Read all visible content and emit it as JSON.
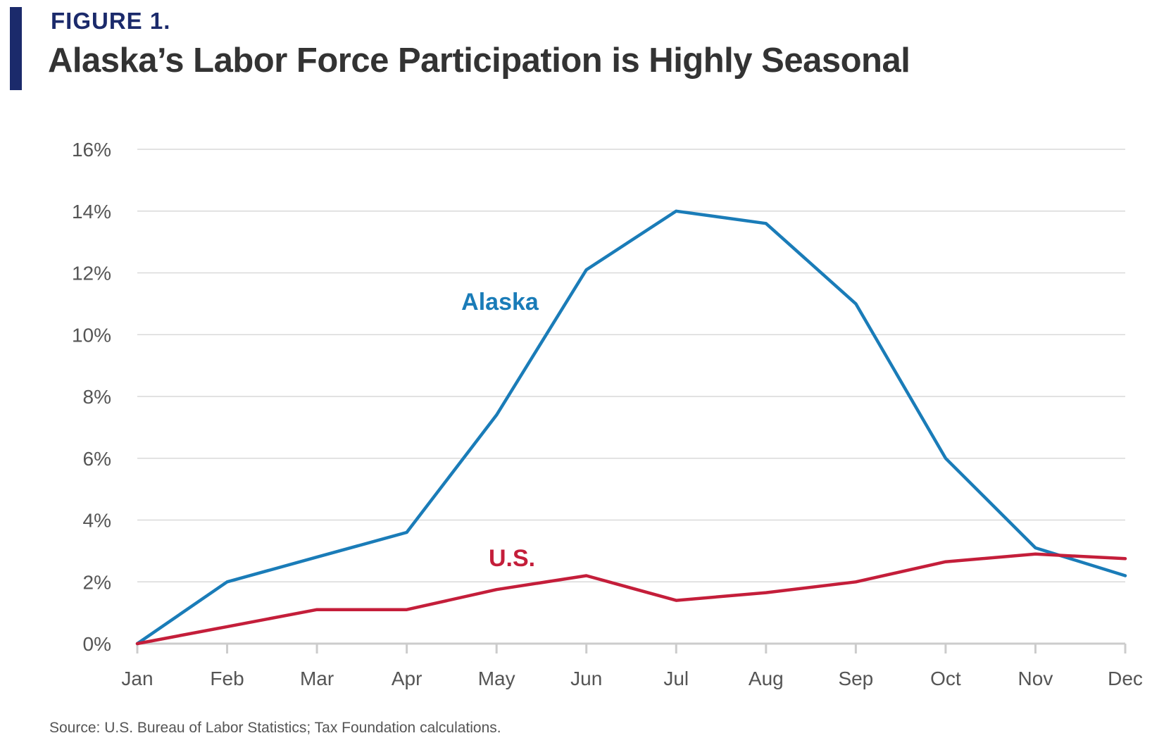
{
  "header": {
    "figure_label": "FIGURE 1.",
    "title": "Alaska’s Labor Force Participation is Highly Seasonal"
  },
  "footer": {
    "source": "Source: U.S. Bureau of Labor Statistics; Tax Foundation calculations."
  },
  "colors": {
    "accent": "#1b2a6b",
    "alaska": "#1a7cb8",
    "us": "#c41e3a",
    "grid": "#d9d9d9",
    "axis": "#cccccc"
  },
  "chart_data": {
    "type": "line",
    "title": "Alaska’s Labor Force Participation is Highly Seasonal",
    "xlabel": "",
    "ylabel": "",
    "categories": [
      "Jan",
      "Feb",
      "Mar",
      "Apr",
      "May",
      "Jun",
      "Jul",
      "Aug",
      "Sep",
      "Oct",
      "Nov",
      "Dec"
    ],
    "ylim": [
      0,
      16
    ],
    "yticks": [
      0,
      2,
      4,
      6,
      8,
      10,
      12,
      14,
      16
    ],
    "ytick_labels": [
      "0%",
      "2%",
      "4%",
      "6%",
      "8%",
      "10%",
      "12%",
      "14%",
      "16%"
    ],
    "grid": true,
    "legend": "inline labels",
    "series": [
      {
        "name": "Alaska",
        "color": "#1a7cb8",
        "values": [
          0,
          2.0,
          2.8,
          3.6,
          7.4,
          12.1,
          14.0,
          13.6,
          11.0,
          6.0,
          3.1,
          2.2
        ]
      },
      {
        "name": "U.S.",
        "color": "#c41e3a",
        "values": [
          0,
          0.55,
          1.1,
          1.1,
          1.75,
          2.2,
          1.4,
          1.65,
          2.0,
          2.65,
          2.9,
          2.75
        ]
      }
    ]
  }
}
